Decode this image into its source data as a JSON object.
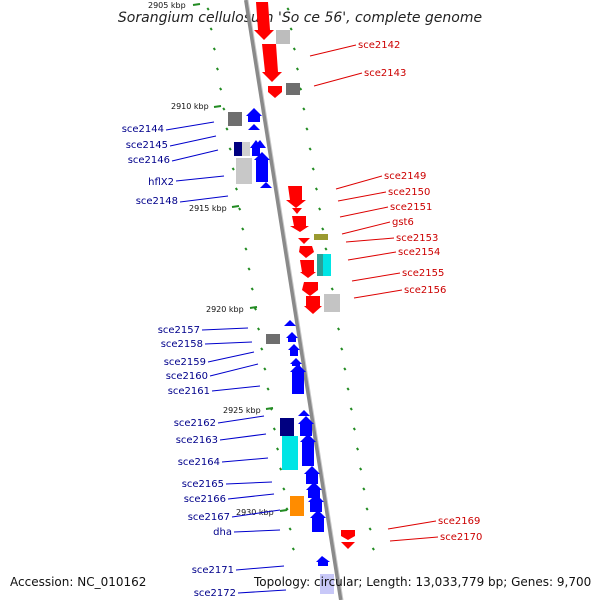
{
  "title": "Sorangium cellulosum 'So ce 56', complete genome",
  "footer": {
    "accession": "Accession: NC_010162",
    "topology": "Topology: circular; Length: 13,033,779 bp; Genes: 9,700"
  },
  "kbp_labels": [
    {
      "text": "2905 kbp"
    },
    {
      "text": "2910 kbp"
    },
    {
      "text": "2915 kbp"
    },
    {
      "text": "2920 kbp"
    },
    {
      "text": "2925 kbp"
    },
    {
      "text": "2930 kbp"
    }
  ],
  "genes_left": [
    {
      "name": "sce2144"
    },
    {
      "name": "sce2145"
    },
    {
      "name": "sce2146"
    },
    {
      "name": "hflX2"
    },
    {
      "name": "sce2148"
    },
    {
      "name": "sce2157"
    },
    {
      "name": "sce2158"
    },
    {
      "name": "sce2159"
    },
    {
      "name": "sce2160"
    },
    {
      "name": "sce2161"
    },
    {
      "name": "sce2162"
    },
    {
      "name": "sce2163"
    },
    {
      "name": "sce2164"
    },
    {
      "name": "sce2165"
    },
    {
      "name": "sce2166"
    },
    {
      "name": "sce2167"
    },
    {
      "name": "dha"
    },
    {
      "name": "sce2171"
    },
    {
      "name": "sce2172"
    }
  ],
  "genes_right": [
    {
      "name": "sce2142"
    },
    {
      "name": "sce2143"
    },
    {
      "name": "sce2149"
    },
    {
      "name": "sce2150"
    },
    {
      "name": "sce2151"
    },
    {
      "name": "gst6"
    },
    {
      "name": "sce2153"
    },
    {
      "name": "sce2154"
    },
    {
      "name": "sce2155"
    },
    {
      "name": "sce2156"
    },
    {
      "name": "sce2169"
    },
    {
      "name": "sce2170"
    }
  ],
  "colors": {
    "forward_strand": "#ff0000",
    "reverse_strand": "#0000ff",
    "rna_gray": "#a9a9a9",
    "tick_green": "#228b22",
    "label_left": "#00008b",
    "label_right": "#cc0000",
    "cyan": "#00ffff",
    "orange": "#ff8c00",
    "olive": "#9a9a30",
    "teal": "#2aa198"
  }
}
